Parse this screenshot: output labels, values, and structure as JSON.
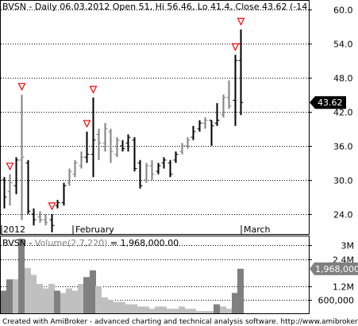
{
  "price_pane": {
    "title": "BVSN - Daily 06.03.2012 Open 51, Hi 56.46, Lo 41.4, Close 43.62 (-14",
    "last_price_tag": "43.62"
  },
  "volume_pane": {
    "title_prefix": "BVSN - ",
    "title_indicator": "Volume(2,7,220)",
    "title_value": " = 1,968,000.00",
    "last_value_tag": "1,968,000"
  },
  "x_axis": {
    "labels": [
      "2012",
      "February",
      "March"
    ]
  },
  "footer": "Created with AmiBroker - advanced charting and technical analysis software. http://www.amibroker.com",
  "colors": {
    "bar": "#000000",
    "bar_grey": "#808080",
    "signal_marker": "#ff0000",
    "volume_dark": "#808080",
    "volume_light": "#c0c0c0",
    "grid": "#000000",
    "tag_bg": "#000000",
    "volume_tag_bg": "#808080"
  },
  "chart_data": [
    {
      "type": "ohlc",
      "title": "BVSN - Daily 06.03.2012 Open 51, Hi 56.46, Lo 41.4, Close 43.62 (-14",
      "ylim": [
        20.5,
        61.5
      ],
      "y_ticks": [
        24.0,
        30.0,
        36.0,
        42.0,
        48.0,
        54.0,
        60.0
      ],
      "y_tick_labels": [
        "24.0",
        "30.0",
        "36.0",
        "42.0",
        "48.0",
        "54.0",
        "60.0"
      ],
      "grid": true,
      "x_labels": [
        "2012",
        "February",
        "March"
      ],
      "bars": [
        {
          "open": 30.0,
          "high": 30.5,
          "low": 25.0,
          "close": 27.0,
          "color": "black",
          "marker": false
        },
        {
          "open": 28.0,
          "high": 31.0,
          "low": 25.5,
          "close": 29.5,
          "color": "grey",
          "marker": true
        },
        {
          "open": 29.0,
          "high": 34.0,
          "low": 27.5,
          "close": 33.5,
          "color": "black",
          "marker": false
        },
        {
          "open": 33.5,
          "high": 45.0,
          "low": 23.0,
          "close": 34.0,
          "color": "grey",
          "marker": true
        },
        {
          "open": 33.0,
          "high": 33.5,
          "low": 24.0,
          "close": 24.5,
          "color": "black",
          "marker": false
        },
        {
          "open": 24.0,
          "high": 25.0,
          "low": 22.0,
          "close": 23.0,
          "color": "black",
          "marker": false
        },
        {
          "open": 23.5,
          "high": 24.5,
          "low": 22.5,
          "close": 23.0,
          "color": "grey",
          "marker": false
        },
        {
          "open": 23.0,
          "high": 24.0,
          "low": 22.0,
          "close": 22.5,
          "color": "grey",
          "marker": false
        },
        {
          "open": 23.0,
          "high": 24.0,
          "low": 20.8,
          "close": 22.0,
          "color": "black",
          "marker": true
        },
        {
          "open": 25.5,
          "high": 26.5,
          "low": 25.0,
          "close": 26.0,
          "color": "black",
          "marker": false
        },
        {
          "open": 26.0,
          "high": 29.5,
          "low": 25.5,
          "close": 29.0,
          "color": "black",
          "marker": false
        },
        {
          "open": 29.5,
          "high": 32.0,
          "low": 29.0,
          "close": 31.5,
          "color": "grey",
          "marker": false
        },
        {
          "open": 31.0,
          "high": 33.5,
          "low": 30.5,
          "close": 33.0,
          "color": "grey",
          "marker": false
        },
        {
          "open": 32.5,
          "high": 35.0,
          "low": 32.0,
          "close": 34.0,
          "color": "grey",
          "marker": false
        },
        {
          "open": 34.0,
          "high": 38.5,
          "low": 33.0,
          "close": 34.5,
          "color": "black",
          "marker": true
        },
        {
          "open": 34.5,
          "high": 44.5,
          "low": 30.5,
          "close": 37.0,
          "color": "black",
          "marker": true
        },
        {
          "open": 38.0,
          "high": 39.0,
          "low": 33.5,
          "close": 36.5,
          "color": "grey",
          "marker": false
        },
        {
          "open": 36.5,
          "high": 40.0,
          "low": 35.0,
          "close": 39.0,
          "color": "grey",
          "marker": false
        },
        {
          "open": 38.5,
          "high": 39.0,
          "low": 33.0,
          "close": 35.0,
          "color": "grey",
          "marker": false
        },
        {
          "open": 34.5,
          "high": 37.5,
          "low": 34.0,
          "close": 37.0,
          "color": "grey",
          "marker": false
        },
        {
          "open": 36.0,
          "high": 37.0,
          "low": 35.0,
          "close": 35.5,
          "color": "black",
          "marker": false
        },
        {
          "open": 36.5,
          "high": 38.0,
          "low": 35.0,
          "close": 37.5,
          "color": "black",
          "marker": false
        },
        {
          "open": 37.0,
          "high": 37.5,
          "low": 31.5,
          "close": 32.0,
          "color": "black",
          "marker": false
        },
        {
          "open": 33.0,
          "high": 33.5,
          "low": 28.5,
          "close": 29.0,
          "color": "black",
          "marker": false
        },
        {
          "open": 30.0,
          "high": 33.0,
          "low": 29.5,
          "close": 32.5,
          "color": "grey",
          "marker": false
        },
        {
          "open": 32.5,
          "high": 33.5,
          "low": 30.0,
          "close": 31.0,
          "color": "grey",
          "marker": false
        },
        {
          "open": 31.5,
          "high": 33.0,
          "low": 31.0,
          "close": 32.5,
          "color": "black",
          "marker": false
        },
        {
          "open": 33.0,
          "high": 34.0,
          "low": 32.0,
          "close": 33.5,
          "color": "black",
          "marker": false
        },
        {
          "open": 33.0,
          "high": 33.5,
          "low": 30.5,
          "close": 31.0,
          "color": "black",
          "marker": false
        },
        {
          "open": 33.5,
          "high": 35.0,
          "low": 33.0,
          "close": 34.5,
          "color": "black",
          "marker": false
        },
        {
          "open": 35.0,
          "high": 36.5,
          "low": 34.5,
          "close": 36.0,
          "color": "grey",
          "marker": false
        },
        {
          "open": 36.0,
          "high": 37.5,
          "low": 35.5,
          "close": 37.0,
          "color": "grey",
          "marker": false
        },
        {
          "open": 37.5,
          "high": 39.5,
          "low": 37.0,
          "close": 38.5,
          "color": "black",
          "marker": false
        },
        {
          "open": 39.0,
          "high": 40.5,
          "low": 38.5,
          "close": 40.0,
          "color": "black",
          "marker": false
        },
        {
          "open": 40.0,
          "high": 41.0,
          "low": 39.0,
          "close": 40.5,
          "color": "grey",
          "marker": false
        },
        {
          "open": 40.5,
          "high": 40.5,
          "low": 36.0,
          "close": 39.5,
          "color": "black",
          "marker": false
        },
        {
          "open": 40.0,
          "high": 43.5,
          "low": 39.5,
          "close": 40.5,
          "color": "black",
          "marker": false
        },
        {
          "open": 41.5,
          "high": 45.0,
          "low": 41.0,
          "close": 44.5,
          "color": "grey",
          "marker": false
        },
        {
          "open": 44.5,
          "high": 47.5,
          "low": 42.5,
          "close": 43.0,
          "color": "grey",
          "marker": false
        },
        {
          "open": 44.0,
          "high": 52.0,
          "low": 39.5,
          "close": 51.0,
          "color": "black",
          "marker": true
        },
        {
          "open": 51.0,
          "high": 56.46,
          "low": 41.4,
          "close": 43.62,
          "color": "black",
          "marker": true
        }
      ]
    },
    {
      "type": "bar",
      "title": "BVSN - Volume(2,7,220) = 1,968,000.00",
      "ylim": [
        0,
        3400000
      ],
      "y_ticks": [
        600000,
        1200000,
        2400000,
        3000000
      ],
      "y_tick_labels": [
        "600,000",
        "1.2M",
        "2.4M",
        "3M"
      ],
      "values": [
        1000000,
        1500000,
        1500000,
        3300000,
        2000000,
        1700000,
        1300000,
        1100000,
        1300000,
        1000000,
        900000,
        1100000,
        1000000,
        1300000,
        1600000,
        1900000,
        1200000,
        700000,
        600000,
        500000,
        500000,
        400000,
        400000,
        300000,
        300000,
        200000,
        300000,
        300000,
        200000,
        200000,
        300000,
        200000,
        200000,
        100000,
        100000,
        100000,
        400000,
        300000,
        200000,
        900000,
        1968000
      ],
      "colors": [
        "dark",
        "dark",
        "light",
        "dark",
        "light",
        "light",
        "light",
        "light",
        "light",
        "dark",
        "light",
        "light",
        "light",
        "light",
        "dark",
        "dark",
        "light",
        "light",
        "light",
        "light",
        "light",
        "light",
        "light",
        "light",
        "light",
        "light",
        "light",
        "light",
        "light",
        "light",
        "light",
        "light",
        "light",
        "light",
        "light",
        "light",
        "dark",
        "light",
        "light",
        "dark",
        "dark"
      ]
    }
  ]
}
